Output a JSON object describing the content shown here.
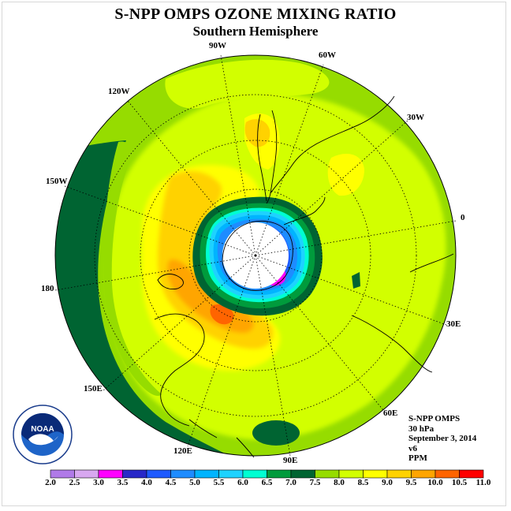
{
  "title": "S-NPP OMPS OZONE MIXING RATIO",
  "subtitle": "Southern Hemisphere",
  "longitude_labels": {
    "lon_90w": "90W",
    "lon_60w": "60W",
    "lon_30w": "30W",
    "lon_0": "0",
    "lon_30e": "30E",
    "lon_60e": "60E",
    "lon_90e": "90E",
    "lon_120e": "120E",
    "lon_150e": "150E",
    "lon_180": "180",
    "lon_150w": "150W",
    "lon_120w": "120W"
  },
  "info": {
    "instrument": "S-NPP OMPS",
    "level": "30 hPa",
    "date": "September 3, 2014",
    "version": "v6",
    "units": "PPM"
  },
  "logo_text": "NOAA",
  "colorbar": {
    "ticks": [
      "2.0",
      "2.5",
      "3.0",
      "3.5",
      "4.0",
      "4.5",
      "5.0",
      "5.5",
      "6.0",
      "6.5",
      "7.0",
      "7.5",
      "8.0",
      "8.5",
      "9.0",
      "9.5",
      "10.0",
      "10.5",
      "11.0"
    ],
    "colors": [
      "#b07ae8",
      "#d8a8f0",
      "#ff00ff",
      "#2828c8",
      "#1e5aff",
      "#1e8cff",
      "#00b4ff",
      "#1ed2ff",
      "#00ffd2",
      "#009b3c",
      "#006432",
      "#96dc00",
      "#d2ff00",
      "#ffff00",
      "#ffd200",
      "#ffa500",
      "#ff6400",
      "#ff0000",
      "#8b4513"
    ]
  }
}
